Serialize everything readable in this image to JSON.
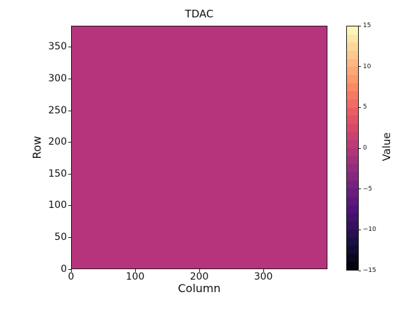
{
  "figure": {
    "background": "#ffffff",
    "spine_color": "#1a1a1a"
  },
  "chart_data": {
    "type": "heatmap",
    "title": "TDAC",
    "xlabel": "Column",
    "ylabel": "Row",
    "xlim": [
      0,
      400
    ],
    "ylim": [
      0,
      384
    ],
    "grid_columns": 400,
    "grid_rows": 384,
    "uniform_value": 0,
    "cell_color": "#b5347b",
    "xtick_values": [
      0,
      100,
      200,
      300
    ],
    "xtick_labels": [
      "0",
      "100",
      "200",
      "300"
    ],
    "ytick_values": [
      0,
      50,
      100,
      150,
      200,
      250,
      300,
      350
    ],
    "ytick_labels": [
      "0",
      "50",
      "100",
      "150",
      "200",
      "250",
      "300",
      "350"
    ],
    "grid": false,
    "legend": false,
    "colorbar": {
      "label": "Value",
      "vmin": -15,
      "vmax": 15,
      "levels": 30,
      "tick_values": [
        15,
        10,
        5,
        0,
        -5,
        -10,
        -15
      ],
      "tick_labels": [
        "15",
        "10",
        "5",
        "0",
        "−5",
        "−10",
        "−15"
      ],
      "colormap": "magma",
      "colormap_anchors": [
        "#000004",
        "#1d1147",
        "#51127c",
        "#822681",
        "#b73779",
        "#e75263",
        "#fc8961",
        "#fec488",
        "#fcfdbf"
      ]
    }
  }
}
